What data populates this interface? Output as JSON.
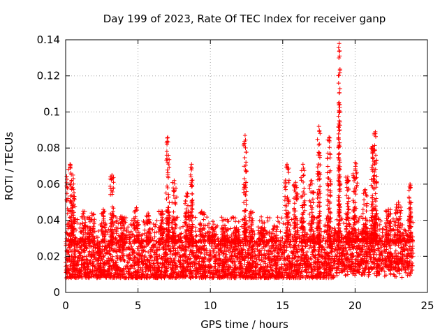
{
  "chart_data": {
    "type": "scatter",
    "title": "Day 199 of 2023, Rate Of TEC Index for receiver ganp",
    "xlabel": "GPS time / hours",
    "ylabel": "ROTI / TECUs",
    "xlim": [
      0,
      25
    ],
    "ylim": [
      0,
      0.14
    ],
    "xticks": [
      0,
      5,
      10,
      15,
      20,
      25
    ],
    "xtick_labels": [
      "0",
      "5",
      "10",
      "15",
      "20",
      "25"
    ],
    "yticks": [
      0,
      0.02,
      0.04,
      0.06,
      0.08,
      0.1,
      0.12,
      0.14
    ],
    "ytick_labels": [
      "0",
      "0.02",
      "0.04",
      "0.06",
      "0.08",
      "0.1",
      "0.12",
      "0.14"
    ],
    "grid": true,
    "marker": "+",
    "color": "#ff0000",
    "data_range_x": [
      0,
      24
    ],
    "baseline_band": [
      0.008,
      0.028
    ],
    "bursts": [
      {
        "x": 0.3,
        "peak": 0.071,
        "spread": 0.5
      },
      {
        "x": 0.5,
        "peak": 0.065,
        "spread": 0.3
      },
      {
        "x": 1.2,
        "peak": 0.045,
        "spread": 0.4
      },
      {
        "x": 1.8,
        "peak": 0.044,
        "spread": 0.4
      },
      {
        "x": 2.6,
        "peak": 0.046,
        "spread": 0.3
      },
      {
        "x": 3.2,
        "peak": 0.065,
        "spread": 0.25
      },
      {
        "x": 3.9,
        "peak": 0.042,
        "spread": 0.4
      },
      {
        "x": 4.9,
        "peak": 0.047,
        "spread": 0.4
      },
      {
        "x": 5.7,
        "peak": 0.044,
        "spread": 0.4
      },
      {
        "x": 6.6,
        "peak": 0.045,
        "spread": 0.4
      },
      {
        "x": 7.05,
        "peak": 0.086,
        "spread": 0.25
      },
      {
        "x": 7.5,
        "peak": 0.062,
        "spread": 0.35
      },
      {
        "x": 8.4,
        "peak": 0.055,
        "spread": 0.3
      },
      {
        "x": 8.7,
        "peak": 0.071,
        "spread": 0.15
      },
      {
        "x": 9.4,
        "peak": 0.045,
        "spread": 0.4
      },
      {
        "x": 10.1,
        "peak": 0.036,
        "spread": 0.4
      },
      {
        "x": 11.0,
        "peak": 0.037,
        "spread": 0.4
      },
      {
        "x": 11.8,
        "peak": 0.036,
        "spread": 0.4
      },
      {
        "x": 12.4,
        "peak": 0.087,
        "spread": 0.2
      },
      {
        "x": 12.8,
        "peak": 0.045,
        "spread": 0.3
      },
      {
        "x": 13.6,
        "peak": 0.036,
        "spread": 0.4
      },
      {
        "x": 14.4,
        "peak": 0.037,
        "spread": 0.4
      },
      {
        "x": 15.3,
        "peak": 0.071,
        "spread": 0.3
      },
      {
        "x": 15.9,
        "peak": 0.061,
        "spread": 0.3
      },
      {
        "x": 16.4,
        "peak": 0.071,
        "spread": 0.3
      },
      {
        "x": 17.0,
        "peak": 0.062,
        "spread": 0.3
      },
      {
        "x": 17.5,
        "peak": 0.092,
        "spread": 0.2
      },
      {
        "x": 18.2,
        "peak": 0.086,
        "spread": 0.25
      },
      {
        "x": 18.9,
        "peak": 0.138,
        "spread": 0.12
      },
      {
        "x": 19.5,
        "peak": 0.064,
        "spread": 0.3
      },
      {
        "x": 20.0,
        "peak": 0.072,
        "spread": 0.3
      },
      {
        "x": 20.7,
        "peak": 0.057,
        "spread": 0.3
      },
      {
        "x": 21.2,
        "peak": 0.081,
        "spread": 0.2
      },
      {
        "x": 21.4,
        "peak": 0.089,
        "spread": 0.2
      },
      {
        "x": 22.3,
        "peak": 0.046,
        "spread": 0.4
      },
      {
        "x": 23.0,
        "peak": 0.05,
        "spread": 0.4
      },
      {
        "x": 23.8,
        "peak": 0.06,
        "spread": 0.15
      }
    ]
  }
}
